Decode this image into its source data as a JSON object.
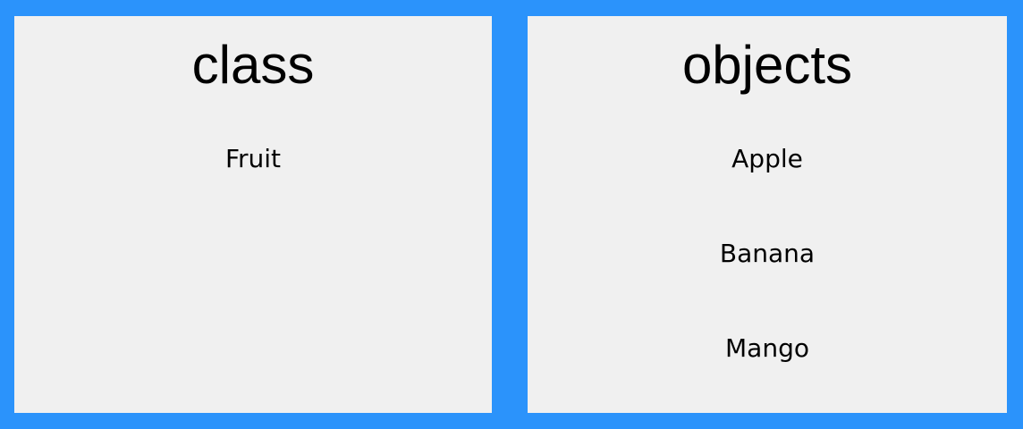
{
  "panels": {
    "class": {
      "title": "class",
      "items": [
        "Fruit"
      ]
    },
    "objects": {
      "title": "objects",
      "items": [
        "Apple",
        "Banana",
        "Mango"
      ]
    }
  },
  "colors": {
    "background": "#2b93fb",
    "panel": "#f0f0f0",
    "text": "#000000"
  }
}
